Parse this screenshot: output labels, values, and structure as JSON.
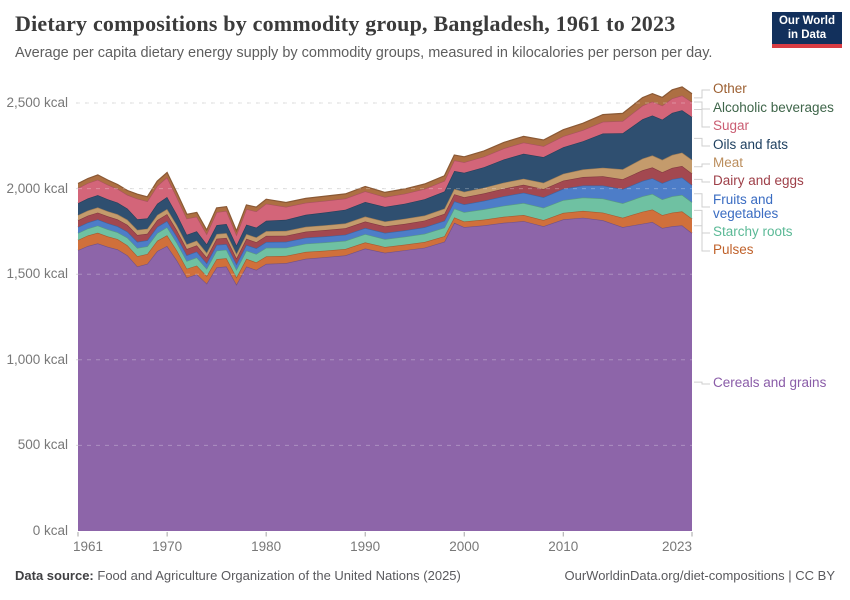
{
  "header": {
    "title": "Dietary compositions by commodity group, Bangladesh, 1961 to 2023",
    "subtitle": "Average per capita dietary energy supply by commodity groups, measured in kilocalories per person per day.",
    "logo": {
      "line1": "Our World",
      "line2": "in Data"
    }
  },
  "chart_data": {
    "type": "area",
    "stacked": true,
    "title": "Dietary compositions by commodity group, Bangladesh, 1961 to 2023",
    "ylabel": "",
    "xlabel": "",
    "y_unit": "kcal per person per day",
    "ylim": [
      0,
      2600
    ],
    "grid": "dashed",
    "legend_position": "right",
    "yticks": [
      0,
      500,
      1000,
      1500,
      2000,
      2500
    ],
    "ytick_labels": [
      "0 kcal",
      "500 kcal",
      "1,000 kcal",
      "1,500 kcal",
      "2,000 kcal",
      "2,500 kcal"
    ],
    "xticks": [
      1961,
      1970,
      1980,
      1990,
      2000,
      2010,
      2023
    ],
    "xtick_labels": [
      "1961",
      "1970",
      "1980",
      "1990",
      "2000",
      "2010",
      "2023"
    ],
    "x": [
      1961,
      1962,
      1963,
      1964,
      1965,
      1966,
      1967,
      1968,
      1969,
      1970,
      1971,
      1972,
      1973,
      1974,
      1975,
      1976,
      1977,
      1978,
      1979,
      1980,
      1982,
      1984,
      1986,
      1988,
      1990,
      1992,
      1994,
      1996,
      1998,
      1999,
      2000,
      2002,
      2004,
      2006,
      2008,
      2010,
      2012,
      2014,
      2016,
      2018,
      2019,
      2020,
      2021,
      2022,
      2023
    ],
    "series": [
      {
        "name": "Cereals and grains",
        "color": "#8d65a9",
        "label_color": "#8a5ca8",
        "values": [
          1640,
          1665,
          1680,
          1660,
          1645,
          1610,
          1545,
          1560,
          1635,
          1665,
          1580,
          1480,
          1500,
          1445,
          1540,
          1545,
          1440,
          1545,
          1525,
          1560,
          1565,
          1590,
          1600,
          1610,
          1650,
          1625,
          1640,
          1655,
          1690,
          1800,
          1775,
          1785,
          1800,
          1810,
          1780,
          1820,
          1830,
          1815,
          1775,
          1795,
          1805,
          1770,
          1780,
          1785,
          1740
        ]
      },
      {
        "name": "Pulses",
        "color": "#d0703b",
        "label_color": "#c0622b",
        "values": [
          60,
          61,
          62,
          61,
          60,
          58,
          60,
          58,
          60,
          62,
          58,
          52,
          50,
          45,
          48,
          48,
          42,
          45,
          44,
          44,
          42,
          40,
          38,
          37,
          36,
          34,
          33,
          33,
          32,
          32,
          33,
          34,
          35,
          36,
          36,
          38,
          40,
          45,
          55,
          70,
          73,
          75,
          80,
          82,
          85
        ]
      },
      {
        "name": "Starchy roots",
        "color": "#6fc1a2",
        "label_color": "#5bb996",
        "values": [
          40,
          41,
          42,
          41,
          40,
          45,
          48,
          45,
          45,
          48,
          45,
          45,
          48,
          42,
          50,
          50,
          45,
          48,
          49,
          50,
          48,
          48,
          48,
          48,
          48,
          46,
          46,
          48,
          50,
          52,
          55,
          60,
          65,
          70,
          72,
          75,
          78,
          82,
          85,
          90,
          91,
          92,
          95,
          96,
          95
        ]
      },
      {
        "name": "Fruits and vegetables",
        "color": "#4d7dc8",
        "label_color": "#3a6cc2",
        "values": [
          35,
          35,
          36,
          36,
          35,
          35,
          36,
          35,
          36,
          36,
          35,
          34,
          34,
          32,
          33,
          33,
          32,
          33,
          33,
          34,
          34,
          35,
          35,
          36,
          36,
          36,
          37,
          38,
          40,
          42,
          45,
          50,
          55,
          60,
          62,
          66,
          70,
          76,
          82,
          90,
          92,
          95,
          100,
          102,
          100
        ]
      },
      {
        "name": "Dairy and eggs",
        "color": "#a34850",
        "label_color": "#9e3f48",
        "values": [
          40,
          40,
          40,
          40,
          40,
          40,
          40,
          38,
          40,
          40,
          38,
          36,
          36,
          34,
          36,
          36,
          34,
          36,
          36,
          36,
          36,
          36,
          37,
          37,
          38,
          38,
          38,
          39,
          40,
          41,
          42,
          43,
          45,
          46,
          47,
          48,
          50,
          54,
          58,
          62,
          63,
          64,
          66,
          67,
          68
        ]
      },
      {
        "name": "Meat",
        "color": "#c49b6c",
        "label_color": "#bb8d5c",
        "values": [
          30,
          30,
          30,
          30,
          30,
          30,
          30,
          30,
          30,
          30,
          30,
          28,
          28,
          27,
          28,
          28,
          27,
          28,
          28,
          28,
          28,
          28,
          28,
          29,
          29,
          29,
          30,
          30,
          31,
          31,
          32,
          33,
          35,
          36,
          37,
          40,
          44,
          50,
          58,
          68,
          70,
          72,
          76,
          78,
          80
        ]
      },
      {
        "name": "Oils and fats",
        "color": "#2f4f70",
        "label_color": "#1f4060",
        "values": [
          70,
          71,
          72,
          70,
          68,
          65,
          62,
          60,
          65,
          70,
          62,
          55,
          55,
          50,
          52,
          53,
          48,
          55,
          57,
          60,
          65,
          70,
          75,
          80,
          85,
          85,
          88,
          95,
          100,
          105,
          110,
          120,
          135,
          145,
          150,
          155,
          165,
          200,
          210,
          230,
          233,
          235,
          245,
          248,
          250
        ]
      },
      {
        "name": "Sugar",
        "color": "#d36579",
        "label_color": "#ca5d72",
        "values": [
          88,
          89,
          90,
          85,
          80,
          80,
          120,
          100,
          105,
          115,
          100,
          95,
          85,
          60,
          75,
          77,
          62,
          90,
          95,
          100,
          75,
          70,
          68,
          65,
          62,
          58,
          58,
          60,
          62,
          62,
          62,
          62,
          65,
          66,
          64,
          64,
          65,
          68,
          72,
          80,
          81,
          82,
          85,
          86,
          88
        ]
      },
      {
        "name": "Alcoholic beverages",
        "color": "#44684f",
        "label_color": "#3e6549",
        "values": [
          0,
          0,
          0,
          0,
          0,
          0,
          0,
          0,
          0,
          0,
          0,
          0,
          0,
          0,
          0,
          0,
          0,
          0,
          0,
          0,
          0,
          0,
          0,
          0,
          0,
          0,
          0,
          0,
          0,
          0,
          0,
          0,
          0,
          0,
          0,
          0,
          0,
          0,
          0,
          0,
          0,
          0,
          0,
          0,
          0
        ]
      },
      {
        "name": "Other",
        "color": "#ad6f42",
        "label_color": "#9c5f31",
        "values": [
          27,
          27,
          28,
          27,
          26,
          26,
          26,
          26,
          27,
          28,
          27,
          25,
          25,
          23,
          25,
          25,
          23,
          25,
          25,
          26,
          26,
          26,
          27,
          27,
          28,
          27,
          28,
          29,
          30,
          31,
          32,
          33,
          35,
          36,
          36,
          38,
          40,
          42,
          44,
          46,
          47,
          48,
          50,
          50,
          48
        ]
      }
    ]
  },
  "legend": {
    "order_top_to_bottom": [
      "Other",
      "Alcoholic beverages",
      "Sugar",
      "Oils and fats",
      "Meat",
      "Dairy and eggs",
      "Fruits and vegetables",
      "Starchy roots",
      "Pulses",
      "Cereals and grains"
    ]
  },
  "footer": {
    "datasource_label": "Data source:",
    "datasource": "Food and Agriculture Organization of the United Nations (2025)",
    "link": "OurWorldinData.org/diet-compositions",
    "separator": "|",
    "license": "CC BY"
  }
}
